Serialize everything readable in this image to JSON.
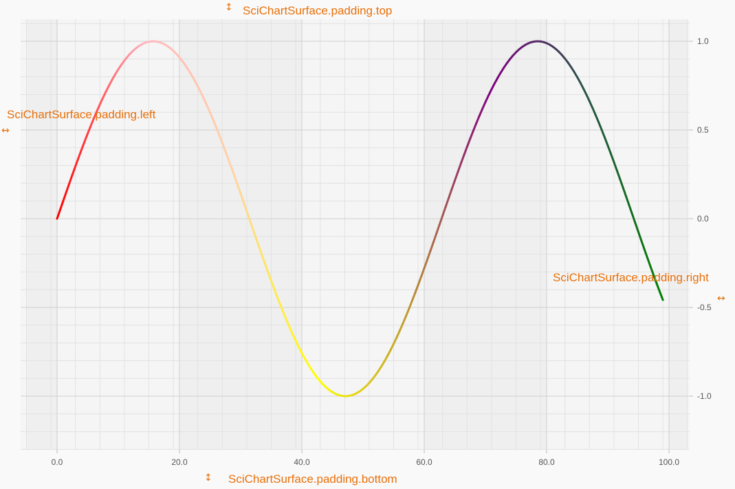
{
  "chart_data": {
    "type": "line",
    "title": "",
    "xlabel": "",
    "ylabel": "",
    "xlim": [
      -5,
      103
    ],
    "ylim": [
      -1.3,
      1.1
    ],
    "grid": true,
    "x_ticks": [
      0,
      20,
      40,
      60,
      80,
      100
    ],
    "x_tick_labels": [
      "0.0",
      "20.0",
      "40.0",
      "60.0",
      "80.0",
      "100.0"
    ],
    "y_ticks": [
      1,
      0.5,
      0,
      -0.5,
      -1
    ],
    "y_tick_labels": [
      "1.0",
      "0.5",
      "0.0",
      "-0.5",
      "-1.0"
    ],
    "y_axis_position": "right",
    "series": [
      {
        "function": "y = sin(0.1 x)",
        "x_start": 0,
        "x_end": 99,
        "points": [
          [
            0,
            0
          ],
          [
            15.7,
            1
          ],
          [
            31.4,
            0
          ],
          [
            47.1,
            -1
          ],
          [
            62.8,
            0
          ],
          [
            78.5,
            1
          ],
          [
            94.2,
            0
          ],
          [
            99,
            -0.46
          ]
        ],
        "gradient_colors": [
          "#ff0000",
          "#ffb6c1",
          "#ffd3a8",
          "#ffff00",
          "#c0a030",
          "#800080",
          "#2f4f4f",
          "#008000"
        ]
      }
    ]
  },
  "annotations": {
    "top": "SciChartSurface.padding.top",
    "left": "SciChartSurface.padding.left",
    "right": "SciChartSurface.padding.right",
    "bottom": "SciChartSurface.padding.bottom"
  },
  "colors": {
    "annotation": "#e8700a",
    "band_dark": "#efefef",
    "band_light": "#f5f5f5",
    "grid_major": "#cfcfcf",
    "grid_minor": "#e2e2e2"
  }
}
